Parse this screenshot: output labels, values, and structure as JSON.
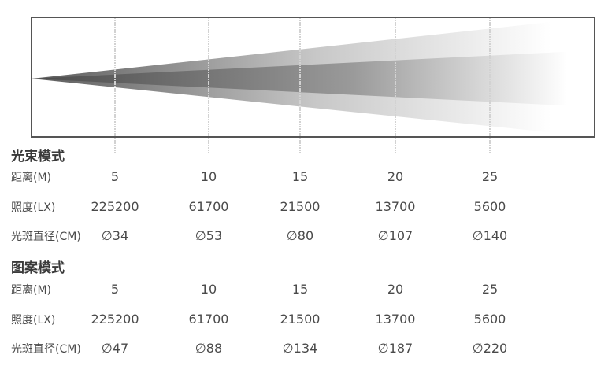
{
  "beam_mode": {
    "title": "光束模式",
    "rows": [
      {
        "label": "距离(M)",
        "values": [
          "5",
          "10",
          "15",
          "20",
          "25"
        ]
      },
      {
        "label": "照度(LX)",
        "values": [
          "225200",
          "61700",
          "21500",
          "13700",
          "5600"
        ]
      },
      {
        "label": "光斑直径(CM)",
        "values": [
          "∅34",
          "∅53",
          "∅80",
          "∅107",
          "∅140"
        ]
      }
    ]
  },
  "pattern_mode": {
    "title": "图案模式",
    "rows": [
      {
        "label": "距离(M)",
        "values": [
          "5",
          "10",
          "15",
          "20",
          "25"
        ]
      },
      {
        "label": "照度(LX)",
        "values": [
          "225200",
          "61700",
          "21500",
          "13700",
          "5600"
        ]
      },
      {
        "label": "光斑直径(CM)",
        "values": [
          "∅47",
          "∅88",
          "∅134",
          "∅187",
          "∅220"
        ]
      }
    ]
  },
  "colors": {
    "frame": "#555555",
    "beam_dark": "#4a4a4a",
    "beam_light": "#ffffff",
    "text": "#4a4a4a"
  }
}
